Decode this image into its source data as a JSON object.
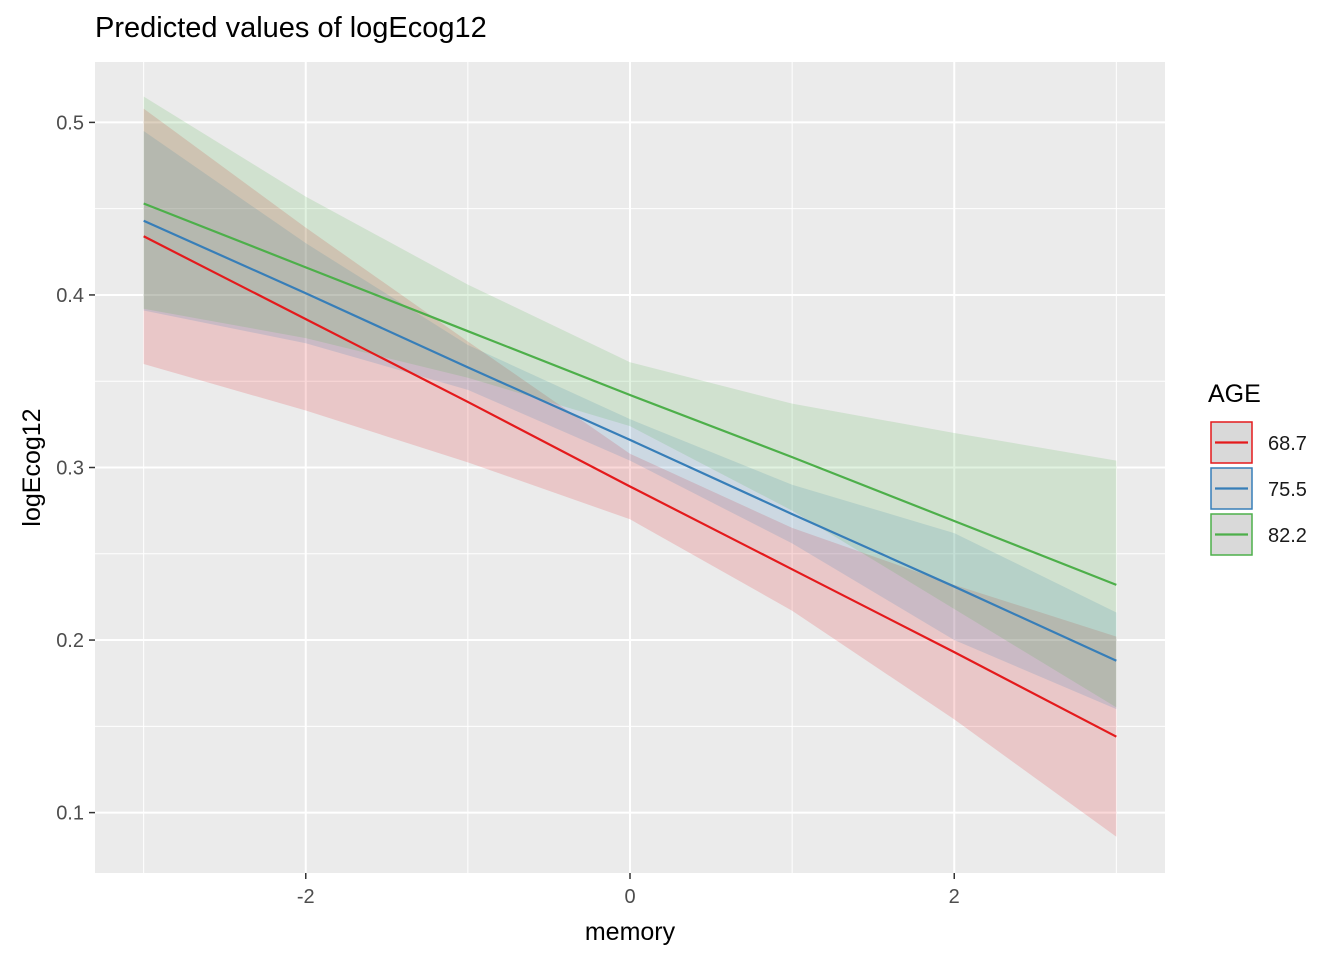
{
  "chart_data": {
    "type": "line",
    "title": "Predicted values of logEcog12",
    "xlabel": "memory",
    "ylabel": "logEcog12",
    "xlim": [
      -3.3,
      3.3
    ],
    "ylim": [
      0.065,
      0.535
    ],
    "x_ticks": [
      -2,
      0,
      2
    ],
    "x_tick_labels": [
      "-2",
      "0",
      "2"
    ],
    "y_ticks": [
      0.1,
      0.2,
      0.3,
      0.4,
      0.5
    ],
    "y_tick_labels": [
      "0.1",
      "0.2",
      "0.3",
      "0.4",
      "0.5"
    ],
    "grid": true,
    "legend": {
      "title": "AGE",
      "position": "right"
    },
    "x": [
      -3,
      -2,
      -1,
      0,
      1,
      2,
      3
    ],
    "series": [
      {
        "name": "68.7",
        "color": "#e41a1c",
        "values": [
          0.434,
          0.386,
          0.338,
          0.289,
          0.241,
          0.193,
          0.144
        ],
        "ci_lower": [
          0.36,
          0.333,
          0.303,
          0.27,
          0.217,
          0.154,
          0.086
        ],
        "ci_upper": [
          0.508,
          0.439,
          0.373,
          0.308,
          0.265,
          0.232,
          0.202
        ]
      },
      {
        "name": "75.5",
        "color": "#377eb8",
        "values": [
          0.443,
          0.401,
          0.358,
          0.316,
          0.273,
          0.231,
          0.188
        ],
        "ci_lower": [
          0.391,
          0.372,
          0.345,
          0.304,
          0.256,
          0.2,
          0.16
        ],
        "ci_upper": [
          0.495,
          0.43,
          0.371,
          0.328,
          0.29,
          0.262,
          0.216
        ]
      },
      {
        "name": "82.2",
        "color": "#4daf4a",
        "values": [
          0.453,
          0.416,
          0.379,
          0.342,
          0.306,
          0.269,
          0.232
        ],
        "ci_lower": [
          0.392,
          0.375,
          0.352,
          0.324,
          0.275,
          0.218,
          0.161
        ],
        "ci_upper": [
          0.515,
          0.457,
          0.406,
          0.361,
          0.337,
          0.32,
          0.304
        ]
      }
    ]
  }
}
